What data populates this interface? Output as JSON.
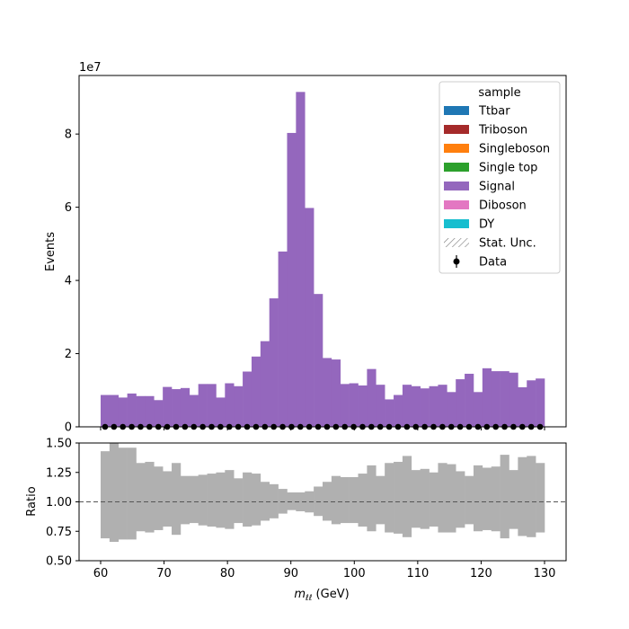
{
  "chart_data": {
    "type": "bar",
    "main": {
      "ylabel": "Events",
      "offset_label": "1e7",
      "ylim": [
        0,
        9.6
      ],
      "yticks": [
        0,
        2,
        4,
        6,
        8
      ],
      "xlim": [
        56.6,
        133.4
      ],
      "xticks": [
        60,
        70,
        80,
        90,
        100,
        110,
        120,
        130
      ]
    },
    "bins": {
      "start": 60,
      "width": 1.4,
      "count": 50
    },
    "series": [
      {
        "name": "Signal",
        "color": "#9467bd",
        "values": [
          0.87,
          0.87,
          0.8,
          0.91,
          0.84,
          0.84,
          0.73,
          1.09,
          1.03,
          1.06,
          0.87,
          1.17,
          1.17,
          0.8,
          1.19,
          1.11,
          1.51,
          1.92,
          2.34,
          3.51,
          4.79,
          8.03,
          9.15,
          5.98,
          3.63,
          1.88,
          1.84,
          1.17,
          1.19,
          1.13,
          1.58,
          1.15,
          0.75,
          0.87,
          1.15,
          1.11,
          1.05,
          1.11,
          1.15,
          0.95,
          1.3,
          1.45,
          0.95,
          1.6,
          1.52,
          1.52,
          1.48,
          1.08,
          1.27,
          1.32
        ]
      }
    ],
    "data_points": {
      "name": "Data",
      "x_first": 60.7,
      "x_step": 1.4,
      "y": 0
    },
    "legend": {
      "title": "sample",
      "position": "top-right",
      "entries": [
        {
          "label": "Ttbar",
          "color": "#1f77b4",
          "kind": "patch"
        },
        {
          "label": "Triboson",
          "color": "#a52a2a",
          "kind": "patch"
        },
        {
          "label": "Singleboson",
          "color": "#ff7f0e",
          "kind": "patch"
        },
        {
          "label": "Single top",
          "color": "#2ca02c",
          "kind": "patch"
        },
        {
          "label": "Signal",
          "color": "#9467bd",
          "kind": "patch"
        },
        {
          "label": "Diboson",
          "color": "#e377c2",
          "kind": "patch"
        },
        {
          "label": "DY",
          "color": "#17becf",
          "kind": "patch"
        },
        {
          "label": "Stat. Unc.",
          "color": "#777777",
          "kind": "hatch"
        },
        {
          "label": "Data",
          "color": "#000000",
          "kind": "marker"
        }
      ]
    },
    "ratio": {
      "ylabel": "Ratio",
      "xlabel_main": "m",
      "xlabel_sub": "ℓℓ",
      "xlabel_unit": " (GeV)",
      "ylim": [
        0.5,
        1.5
      ],
      "yticks": [
        "0.50",
        "0.75",
        "1.00",
        "1.25",
        "1.50"
      ],
      "reference_line": 1.0,
      "band_color": "#b0b0b0",
      "band_upper": [
        1.43,
        1.5,
        1.46,
        1.46,
        1.33,
        1.34,
        1.3,
        1.26,
        1.33,
        1.22,
        1.22,
        1.23,
        1.24,
        1.25,
        1.27,
        1.2,
        1.25,
        1.24,
        1.17,
        1.15,
        1.11,
        1.08,
        1.08,
        1.09,
        1.13,
        1.17,
        1.22,
        1.21,
        1.21,
        1.24,
        1.31,
        1.22,
        1.33,
        1.34,
        1.39,
        1.27,
        1.28,
        1.25,
        1.33,
        1.32,
        1.26,
        1.22,
        1.31,
        1.29,
        1.3,
        1.4,
        1.27,
        1.38,
        1.39,
        1.33
      ],
      "band_lower": [
        0.69,
        0.66,
        0.68,
        0.68,
        0.75,
        0.74,
        0.76,
        0.79,
        0.72,
        0.81,
        0.82,
        0.8,
        0.79,
        0.78,
        0.77,
        0.82,
        0.79,
        0.8,
        0.84,
        0.86,
        0.9,
        0.93,
        0.92,
        0.91,
        0.88,
        0.84,
        0.81,
        0.82,
        0.82,
        0.79,
        0.75,
        0.81,
        0.74,
        0.73,
        0.7,
        0.78,
        0.77,
        0.79,
        0.74,
        0.74,
        0.78,
        0.81,
        0.75,
        0.76,
        0.75,
        0.69,
        0.77,
        0.71,
        0.7,
        0.74
      ]
    }
  }
}
